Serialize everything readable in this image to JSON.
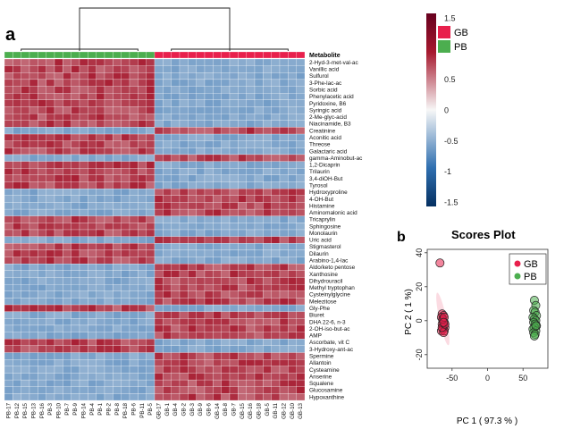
{
  "panel_a_label": "a",
  "panel_b_label": "b",
  "chart_data": [
    {
      "type": "heatmap",
      "title": "",
      "annotation_title": "Metabolite",
      "groups": [
        {
          "name": "GB",
          "color": "#e8204c"
        },
        {
          "name": "PB",
          "color": "#4cae4f"
        }
      ],
      "colorscale": {
        "min": -1.5,
        "max": 1.5,
        "low": "#2f6fb0",
        "mid": "#f2f2f2",
        "high": "#a6192e",
        "ticks": [
          "1.5",
          "1",
          "0.5",
          "0",
          "-0.5",
          "-1",
          "-1.5"
        ]
      },
      "samples": [
        "PB-17",
        "PB-12",
        "PB-15",
        "PB-13",
        "PB-16",
        "PB-3",
        "PB-10",
        "PB-7",
        "PB-9",
        "PB-14",
        "PB-4",
        "PB-1",
        "PB-2",
        "PB-8",
        "PB-18",
        "PB-6",
        "PB-11",
        "PB-5",
        "GB-17",
        "GB-1",
        "GB-4",
        "GB-2",
        "GB-3",
        "GB-9",
        "GB-6",
        "GB-14",
        "GB-8",
        "GB-7",
        "GB-15",
        "GB-16",
        "GB-18",
        "GB-5",
        "GB-11",
        "GB-12",
        "GB-10",
        "GB-13"
      ],
      "sample_groups": [
        "PB",
        "PB",
        "PB",
        "PB",
        "PB",
        "PB",
        "PB",
        "PB",
        "PB",
        "PB",
        "PB",
        "PB",
        "PB",
        "PB",
        "PB",
        "PB",
        "PB",
        "PB",
        "GB",
        "GB",
        "GB",
        "GB",
        "GB",
        "GB",
        "GB",
        "GB",
        "GB",
        "GB",
        "GB",
        "GB",
        "GB",
        "GB",
        "GB",
        "GB",
        "GB",
        "GB"
      ],
      "metabolites": [
        "2-Hyd-3-met-val-ac",
        "Vanillic acid",
        "Sulfurol",
        "3-Phe-lac-ac",
        "Sorbic acid",
        "Phenylacetic acid",
        "Pyridoxine, B6",
        "Syringic acid",
        "2-Me-glyc-acid",
        "Niacinamide, B3",
        "Creatinine",
        "Aconitic acid",
        "Threose",
        "Galactaric acid",
        "gamma-Aminobut-ac",
        "1,2-Dicaprin",
        "Trilaurin",
        "3,4-diOH-But",
        "Tyrosol",
        "Hydroxyproline",
        "4-OH-But",
        "Histamine",
        "Aminomalonic acid",
        "Tricaprylin",
        "Sphingosine",
        "Monolaurin",
        "Uric acid",
        "Stigmasterol",
        "Dilaurin",
        "Arabino-1,4-lac",
        "Aldo/keto pentose",
        "Xanthosine",
        "Dihydrouracil",
        "Methyl tryptophan",
        "Cysteinylglycine",
        "Melezitose",
        "Gly-Phe",
        "Biuret",
        "DHA 22-6, n-3",
        "2-OH-iso-but-ac",
        "AMP",
        "Ascorbate, vit C",
        "3-Hydroxy-ant-ac",
        "Spermine",
        "Allantoin",
        "Cysteamine",
        "Anserine",
        "Squalene",
        "Glucosamine",
        "Hypoxanthine"
      ],
      "row_pattern": [
        "PB",
        "PB",
        "PB",
        "PB",
        "PB",
        "PB",
        "PB",
        "PB",
        "PB",
        "PB",
        "GB",
        "PB",
        "PB",
        "PB",
        "GB",
        "PB",
        "PB",
        "PB",
        "PB",
        "GB",
        "GB",
        "GB",
        "GB",
        "PB",
        "PB",
        "PB",
        "GB",
        "PB",
        "PB",
        "PB",
        "GB",
        "GB",
        "GB",
        "GB",
        "GB",
        "GB",
        "PB",
        "GB",
        "GB",
        "GB",
        "GB",
        "PB",
        "PB",
        "GB",
        "GB",
        "GB",
        "GB",
        "GB",
        "GB",
        "GB"
      ],
      "high_value": 1.2,
      "low_value": -0.85
    },
    {
      "type": "scatter",
      "title": "Scores Plot",
      "xlabel": "PC 1 ( 97.3 % )",
      "ylabel": "PC 2 ( 1 %)",
      "xlim": [
        -85,
        85
      ],
      "ylim": [
        -28,
        42
      ],
      "xticks": [
        "-50",
        "0",
        "50"
      ],
      "yticks": [
        "40",
        "20",
        "0",
        "-20"
      ],
      "xtick_values": [
        -50,
        0,
        50
      ],
      "ytick_values": [
        40,
        20,
        0,
        -20
      ],
      "legend_position": "top-right",
      "series": [
        {
          "name": "GB",
          "color": "#e8204c",
          "points": [
            [
              -67,
              34
            ],
            [
              -64,
              4
            ],
            [
              -62,
              3
            ],
            [
              -65,
              2
            ],
            [
              -63,
              0
            ],
            [
              -61,
              -1
            ],
            [
              -64,
              -2
            ],
            [
              -62,
              -3
            ],
            [
              -60,
              -4
            ],
            [
              -63,
              -5
            ],
            [
              -65,
              -6
            ],
            [
              -61,
              -6
            ],
            [
              -62,
              -7
            ],
            [
              -64,
              -4
            ],
            [
              -60,
              -2
            ],
            [
              -63,
              1
            ],
            [
              -61,
              2
            ],
            [
              -62,
              -1
            ]
          ]
        },
        {
          "name": "PB",
          "color": "#4cae4f",
          "points": [
            [
              66,
              12
            ],
            [
              68,
              9
            ],
            [
              65,
              6
            ],
            [
              67,
              5
            ],
            [
              69,
              3
            ],
            [
              64,
              2
            ],
            [
              66,
              1
            ],
            [
              68,
              0
            ],
            [
              65,
              -1
            ],
            [
              67,
              -2
            ],
            [
              69,
              -3
            ],
            [
              66,
              -4
            ],
            [
              64,
              -5
            ],
            [
              68,
              -6
            ],
            [
              65,
              -7
            ],
            [
              67,
              -8
            ],
            [
              66,
              -9
            ],
            [
              68,
              -3
            ]
          ]
        }
      ]
    }
  ]
}
